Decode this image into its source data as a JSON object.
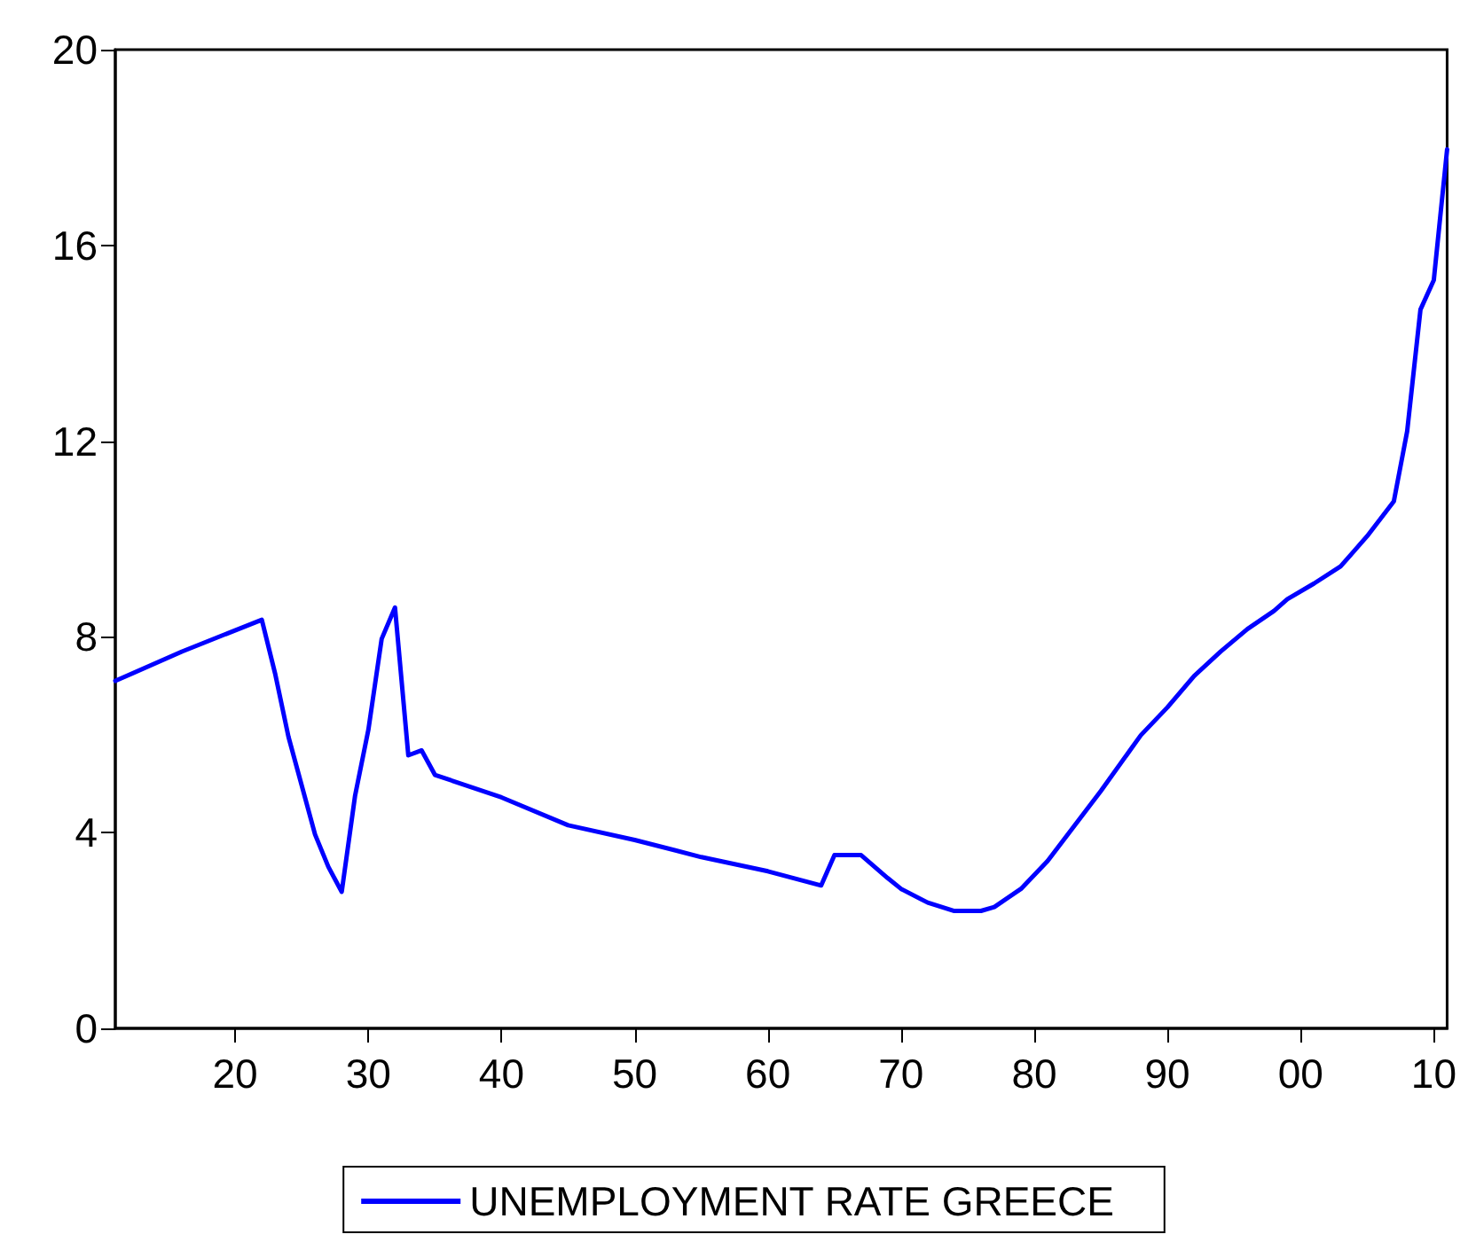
{
  "chart_data": {
    "type": "line",
    "x": [
      1911,
      1916,
      1922,
      1923,
      1924,
      1926,
      1927,
      1928,
      1929,
      1930,
      1931,
      1932,
      1933,
      1934,
      1935,
      1940,
      1945,
      1950,
      1955,
      1960,
      1964,
      1965,
      1967,
      1969,
      1970,
      1972,
      1974,
      1976,
      1977,
      1979,
      1981,
      1985,
      1988,
      1990,
      1992,
      1994,
      1996,
      1998,
      1999,
      2001,
      2003,
      2005,
      2007,
      2008,
      2009,
      2010,
      2011
    ],
    "series": [
      {
        "name": "UNEMPLOYMENT RATE GREECE",
        "color": "#0000ff",
        "values": [
          7.1,
          7.7,
          8.35,
          7.25,
          5.96,
          3.96,
          3.3,
          2.79,
          4.75,
          6.1,
          7.96,
          8.6,
          5.58,
          5.68,
          5.18,
          4.72,
          4.15,
          3.85,
          3.5,
          3.21,
          2.92,
          3.54,
          3.54,
          3.07,
          2.85,
          2.57,
          2.4,
          2.4,
          2.48,
          2.85,
          3.42,
          4.85,
          5.99,
          6.56,
          7.2,
          7.7,
          8.16,
          8.53,
          8.77,
          9.09,
          9.44,
          10.06,
          10.77,
          12.2,
          14.69,
          15.29,
          17.96
        ]
      }
    ],
    "xlim": [
      1911,
      2011
    ],
    "xticks": [
      {
        "value": 1920,
        "label": "20"
      },
      {
        "value": 1930,
        "label": "30"
      },
      {
        "value": 1940,
        "label": "40"
      },
      {
        "value": 1950,
        "label": "50"
      },
      {
        "value": 1960,
        "label": "60"
      },
      {
        "value": 1970,
        "label": "70"
      },
      {
        "value": 1980,
        "label": "80"
      },
      {
        "value": 1990,
        "label": "90"
      },
      {
        "value": 2000,
        "label": "00"
      },
      {
        "value": 2010,
        "label": "10"
      }
    ],
    "ylim": [
      0,
      20
    ],
    "yticks": [
      0,
      4,
      8,
      12,
      16,
      20
    ],
    "grid": false,
    "legend": "bottom",
    "marker": "none",
    "line_style": "solid"
  }
}
